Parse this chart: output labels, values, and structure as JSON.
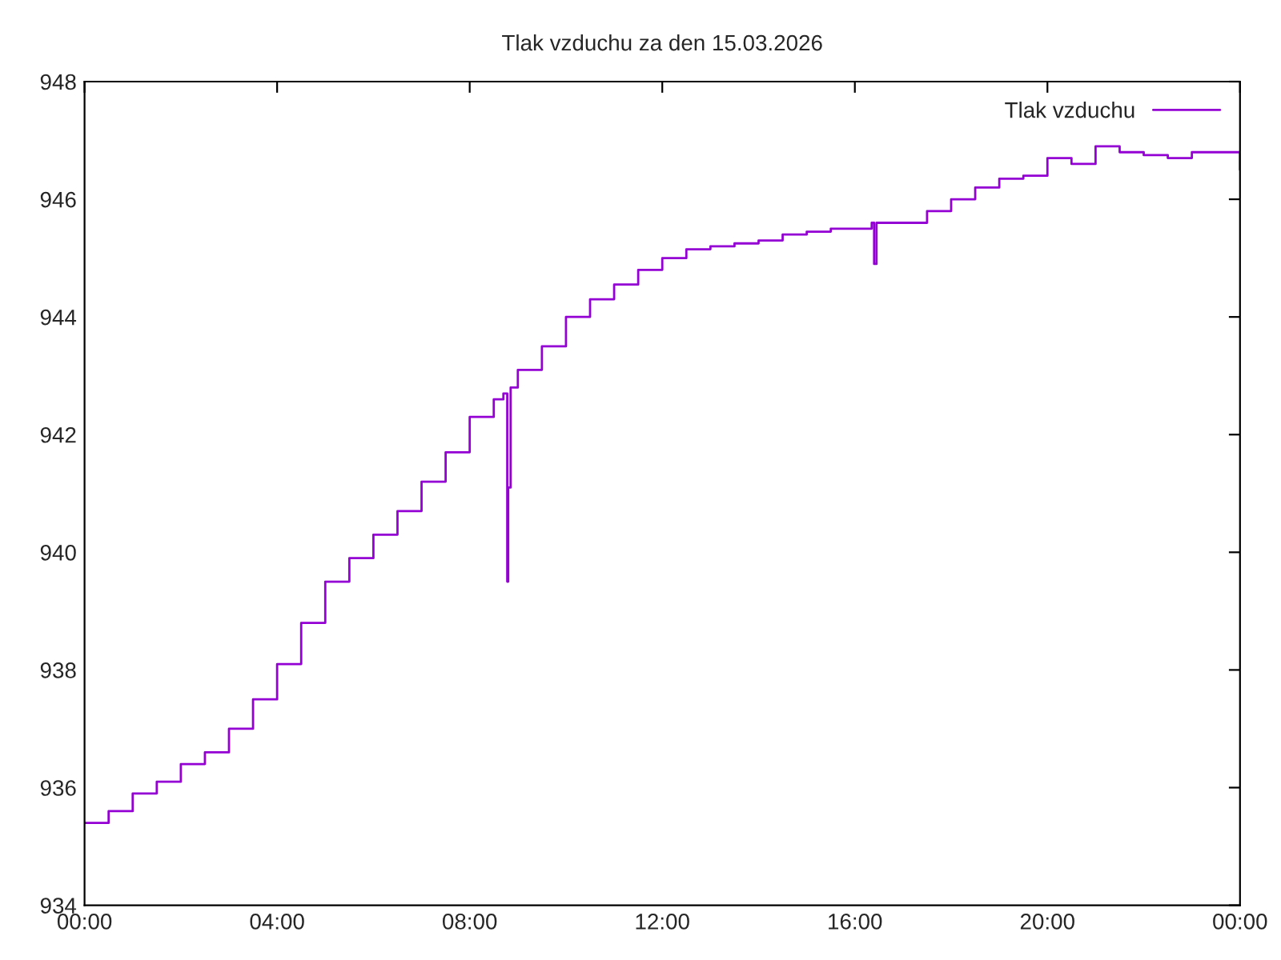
{
  "chart_data": {
    "type": "step",
    "title": "Tlak vzduchu za den 15.03.2026",
    "xlim": [
      0,
      24
    ],
    "xticks": [
      {
        "value": 0,
        "label": "00:00"
      },
      {
        "value": 4,
        "label": "04:00"
      },
      {
        "value": 8,
        "label": "08:00"
      },
      {
        "value": 12,
        "label": "12:00"
      },
      {
        "value": 16,
        "label": "16:00"
      },
      {
        "value": 20,
        "label": "20:00"
      },
      {
        "value": 24,
        "label": "00:00"
      }
    ],
    "ylim": [
      934,
      948
    ],
    "yticks": [
      934,
      936,
      938,
      940,
      942,
      944,
      946,
      948
    ],
    "grid": false,
    "legend": "top right",
    "line_style": "solid",
    "series": [
      {
        "name": "Tlak vzduchu",
        "color": "#9400d3",
        "x": [
          0,
          0.5,
          1,
          1.5,
          2,
          2.5,
          3,
          3.5,
          4,
          4.5,
          5,
          5.5,
          6,
          6.5,
          7,
          7.5,
          8,
          8.5,
          8.7,
          8.78,
          8.8,
          8.85,
          9,
          9.5,
          10,
          10.5,
          11,
          11.5,
          12,
          12.5,
          13,
          13.5,
          14,
          14.5,
          15,
          15.5,
          16,
          16.35,
          16.4,
          16.45,
          17,
          17.5,
          18,
          18.5,
          19,
          19.5,
          20,
          20.5,
          21,
          21.5,
          22,
          22.5,
          23,
          23.5,
          24
        ],
        "values": [
          935.4,
          935.6,
          935.9,
          936.1,
          936.4,
          936.6,
          937.0,
          937.5,
          938.1,
          938.8,
          939.5,
          939.9,
          940.3,
          940.7,
          941.2,
          941.7,
          942.3,
          942.6,
          942.7,
          939.5,
          941.1,
          942.8,
          943.1,
          943.5,
          944.0,
          944.3,
          944.55,
          944.8,
          945.0,
          945.15,
          945.2,
          945.25,
          945.3,
          945.4,
          945.45,
          945.5,
          945.5,
          945.6,
          944.9,
          945.6,
          945.6,
          945.8,
          946.0,
          946.2,
          946.35,
          946.4,
          946.7,
          946.6,
          946.9,
          946.8,
          946.75,
          946.7,
          946.8,
          946.8,
          946.5
        ]
      }
    ]
  }
}
